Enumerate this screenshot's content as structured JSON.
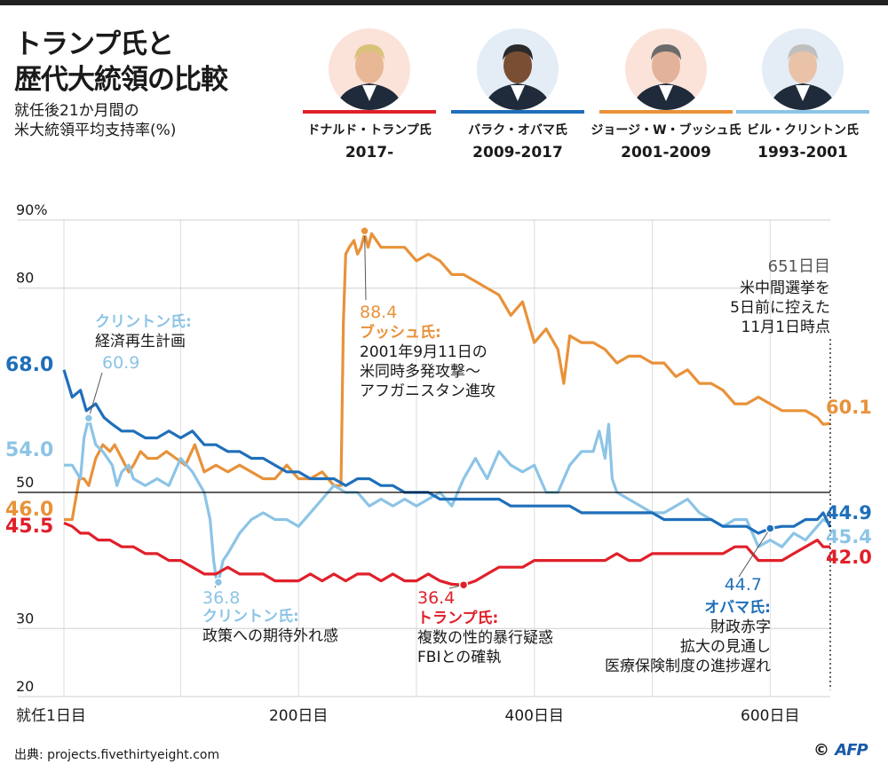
{
  "title_line1": "トランプ氏と",
  "title_line2": "歴代大統領の比較",
  "subtitle_line1": "就任後21か月間の",
  "subtitle_line2": "米大統領平均支持率(%)",
  "presidents": [
    {
      "name": "ドナルド・トランプ氏",
      "years": "2017-",
      "color": "#e0202a",
      "face_bg": "#fbe3da",
      "face_icon": "trump-portrait"
    },
    {
      "name": "バラク・オバマ氏",
      "years": "2009-2017",
      "color": "#1f6fba",
      "face_bg": "#e4ecf5",
      "face_icon": "obama-portrait"
    },
    {
      "name": "ジョージ・W・ブッシュ氏",
      "years": "2001-2009",
      "color": "#e8923a",
      "face_bg": "#fbe3da",
      "face_icon": "bush-portrait"
    },
    {
      "name": "ビル・クリントン氏",
      "years": "1993-2001",
      "color": "#8cc4e6",
      "face_bg": "#e4ecf5",
      "face_icon": "clinton-portrait"
    }
  ],
  "chart_data": {
    "type": "line",
    "xlim": [
      1,
      651
    ],
    "ylim": [
      20,
      90
    ],
    "yticks": [
      {
        "value": 90,
        "label": "90%"
      },
      {
        "value": 80,
        "label": "80"
      },
      {
        "value": 50,
        "label": "50"
      },
      {
        "value": 30,
        "label": "30"
      },
      {
        "value": 20,
        "label": "20"
      }
    ],
    "xticks": [
      {
        "value": 1,
        "label": "就任1日目"
      },
      {
        "value": 200,
        "label": "200日目"
      },
      {
        "value": 400,
        "label": "400日目"
      },
      {
        "value": 600,
        "label": "600日目"
      }
    ],
    "series": [
      {
        "name": "bush",
        "color": "#e8923a",
        "x": [
          1,
          8,
          10,
          14,
          18,
          22,
          28,
          34,
          40,
          44,
          50,
          56,
          60,
          66,
          72,
          80,
          88,
          96,
          104,
          112,
          120,
          130,
          140,
          150,
          160,
          170,
          180,
          190,
          200,
          210,
          220,
          230,
          236,
          238,
          240,
          243,
          247,
          250,
          253,
          256,
          259,
          262,
          270,
          280,
          290,
          300,
          310,
          320,
          330,
          340,
          350,
          360,
          370,
          380,
          390,
          400,
          410,
          420,
          425,
          430,
          440,
          450,
          460,
          470,
          480,
          490,
          500,
          510,
          520,
          530,
          540,
          550,
          560,
          570,
          580,
          590,
          600,
          610,
          620,
          630,
          640,
          645,
          651
        ],
        "y": [
          46,
          46,
          48,
          52,
          52,
          51,
          55,
          57,
          56,
          57,
          55,
          53,
          54,
          56,
          55,
          55,
          56,
          55,
          54,
          57,
          53,
          54,
          53,
          54,
          53,
          52,
          52,
          54,
          52,
          52,
          53,
          51,
          51,
          75,
          85,
          86,
          87,
          85,
          86,
          88,
          86,
          88,
          86,
          86,
          86,
          84,
          85,
          84,
          82,
          82,
          81,
          80,
          79,
          76,
          78,
          72,
          74,
          71,
          66,
          73,
          72,
          72,
          71,
          69,
          70,
          70,
          69,
          69,
          67,
          68,
          66,
          66,
          65,
          63,
          63,
          64,
          63,
          62,
          62,
          62,
          61,
          60,
          60.1
        ]
      },
      {
        "name": "clinton",
        "color": "#8cc4e6",
        "x": [
          1,
          8,
          15,
          18,
          22,
          28,
          34,
          38,
          42,
          46,
          50,
          56,
          60,
          70,
          80,
          90,
          100,
          110,
          120,
          125,
          128,
          130,
          132,
          136,
          140,
          150,
          160,
          170,
          180,
          190,
          200,
          210,
          220,
          230,
          240,
          250,
          260,
          270,
          280,
          290,
          300,
          310,
          320,
          330,
          340,
          350,
          360,
          370,
          380,
          390,
          400,
          410,
          420,
          430,
          440,
          450,
          455,
          460,
          463,
          466,
          470,
          480,
          490,
          500,
          510,
          520,
          530,
          540,
          550,
          560,
          570,
          580,
          585,
          590,
          600,
          610,
          620,
          630,
          640,
          645,
          651
        ],
        "y": [
          54,
          54,
          52,
          58,
          60.9,
          57,
          56,
          55,
          54,
          51,
          53,
          54,
          52,
          51,
          52,
          51,
          55,
          53,
          50,
          46,
          40,
          37.5,
          36.8,
          40,
          41,
          44,
          46,
          47,
          46,
          46,
          45,
          47,
          49,
          51,
          50,
          50,
          48,
          49,
          48,
          49,
          48,
          49,
          50,
          48,
          52,
          55,
          52,
          56,
          54,
          53,
          54,
          50,
          50,
          54,
          56,
          56,
          59,
          55,
          60,
          52,
          50,
          49,
          48,
          47,
          47,
          48,
          49,
          47,
          46,
          45,
          46,
          46,
          44,
          42,
          43,
          42,
          44,
          43,
          45,
          46,
          45.4
        ]
      },
      {
        "name": "obama",
        "color": "#1f6fba",
        "x": [
          1,
          8,
          15,
          20,
          28,
          35,
          42,
          50,
          60,
          70,
          80,
          90,
          100,
          110,
          120,
          130,
          140,
          150,
          160,
          170,
          180,
          190,
          200,
          210,
          220,
          230,
          240,
          250,
          260,
          270,
          280,
          290,
          300,
          310,
          320,
          330,
          340,
          350,
          360,
          370,
          380,
          390,
          400,
          410,
          420,
          430,
          440,
          450,
          460,
          470,
          480,
          490,
          500,
          510,
          520,
          530,
          540,
          550,
          560,
          570,
          580,
          590,
          600,
          610,
          620,
          630,
          640,
          645,
          651
        ],
        "y": [
          68,
          64,
          65,
          62,
          63,
          61,
          60,
          59,
          59,
          58,
          58,
          59,
          58,
          59,
          57,
          57,
          56,
          56,
          55,
          55,
          54,
          53,
          53,
          52,
          52,
          52,
          51,
          52,
          52,
          51,
          51,
          50,
          50,
          50,
          49,
          49,
          49,
          49,
          49,
          49,
          48,
          48,
          48,
          48,
          48,
          48,
          47,
          47,
          47,
          47,
          47,
          47,
          47,
          46,
          46,
          46,
          46,
          46,
          45,
          45,
          45,
          44,
          44.7,
          45,
          45,
          46,
          46,
          47,
          44.9
        ]
      },
      {
        "name": "trump",
        "color": "#e0202a",
        "x": [
          1,
          8,
          15,
          22,
          30,
          40,
          50,
          60,
          70,
          80,
          90,
          100,
          110,
          120,
          130,
          140,
          150,
          160,
          170,
          180,
          190,
          200,
          210,
          220,
          230,
          240,
          250,
          260,
          270,
          280,
          290,
          300,
          310,
          320,
          330,
          340,
          350,
          360,
          370,
          380,
          390,
          400,
          410,
          420,
          430,
          440,
          450,
          460,
          470,
          480,
          490,
          500,
          510,
          520,
          530,
          540,
          550,
          560,
          570,
          580,
          590,
          600,
          610,
          620,
          630,
          640,
          645,
          651
        ],
        "y": [
          45.5,
          45,
          44,
          44,
          43,
          43,
          42,
          42,
          41,
          41,
          40,
          40,
          39,
          38,
          38,
          39,
          38,
          38,
          38,
          37,
          37,
          37,
          38,
          37,
          38,
          37,
          38,
          38,
          37,
          38,
          37,
          37,
          38,
          37,
          36.5,
          36.4,
          37,
          38,
          39,
          39,
          39,
          40,
          40,
          40,
          40,
          40,
          40,
          40,
          41,
          40,
          40,
          41,
          41,
          41,
          41,
          41,
          41,
          41,
          42,
          42,
          40,
          40,
          40,
          41,
          42,
          43,
          42,
          42
        ]
      }
    ],
    "reference_lines": [
      {
        "value": 50,
        "color": "#000000"
      },
      {
        "x_value": 651,
        "color": "#000000",
        "style": "dotted"
      }
    ],
    "start_labels": [
      {
        "text": "68.0",
        "color": "#1f6fba"
      },
      {
        "text": "54.0",
        "color": "#8cc4e6"
      },
      {
        "text": "46.0",
        "color": "#e8923a"
      },
      {
        "text": "45.5",
        "color": "#e0202a"
      }
    ],
    "end_labels": [
      {
        "text": "60.1",
        "color": "#e8923a"
      },
      {
        "text": "44.9",
        "color": "#1f6fba"
      },
      {
        "text": "45.4",
        "color": "#8cc4e6"
      },
      {
        "text": "42.0",
        "color": "#e0202a"
      }
    ],
    "annotations": [
      {
        "key": "clinton_high",
        "point": {
          "x": 22,
          "y": 60.9
        },
        "color": "#8cc4e6",
        "title_color": "#8cc4e6",
        "value": "60.9",
        "title": "クリントン氏:",
        "body": [
          "経済再生計画"
        ]
      },
      {
        "key": "bush_peak",
        "point": {
          "x": 256,
          "y": 88.4
        },
        "color": "#e8923a",
        "title_color": "#e8923a",
        "value": "88.4",
        "title": "ブッシュ氏:",
        "body": [
          "2001年9月11日の",
          "米同時多発攻撃〜",
          "アフガニスタン進攻"
        ]
      },
      {
        "key": "clinton_low",
        "point": {
          "x": 132,
          "y": 36.8
        },
        "color": "#8cc4e6",
        "title_color": "#8cc4e6",
        "value": "36.8",
        "title": "クリントン氏:",
        "body": [
          "政策への期待外れ感"
        ]
      },
      {
        "key": "trump_low",
        "point": {
          "x": 340,
          "y": 36.4
        },
        "color": "#e0202a",
        "title_color": "#e0202a",
        "value": "36.4",
        "title": "トランプ氏:",
        "body": [
          "複数の性的暴行疑惑",
          "FBIとの確執"
        ]
      },
      {
        "key": "obama_low",
        "point": {
          "x": 600,
          "y": 44.7
        },
        "color": "#1f6fba",
        "title_color": "#1f6fba",
        "value": "44.7",
        "title": "オバマ氏:",
        "body": [
          "財政赤字",
          "拡大の見通し",
          "医療保険制度の進捗遅れ"
        ]
      },
      {
        "key": "day651",
        "value": "651日目",
        "body": [
          "米中間選挙を",
          "5日前に控えた",
          "11月1日時点"
        ]
      }
    ]
  },
  "credit": "出典: projects.fivethirtyeight.com",
  "logo_copyright": "©",
  "logo_text": "AFP"
}
